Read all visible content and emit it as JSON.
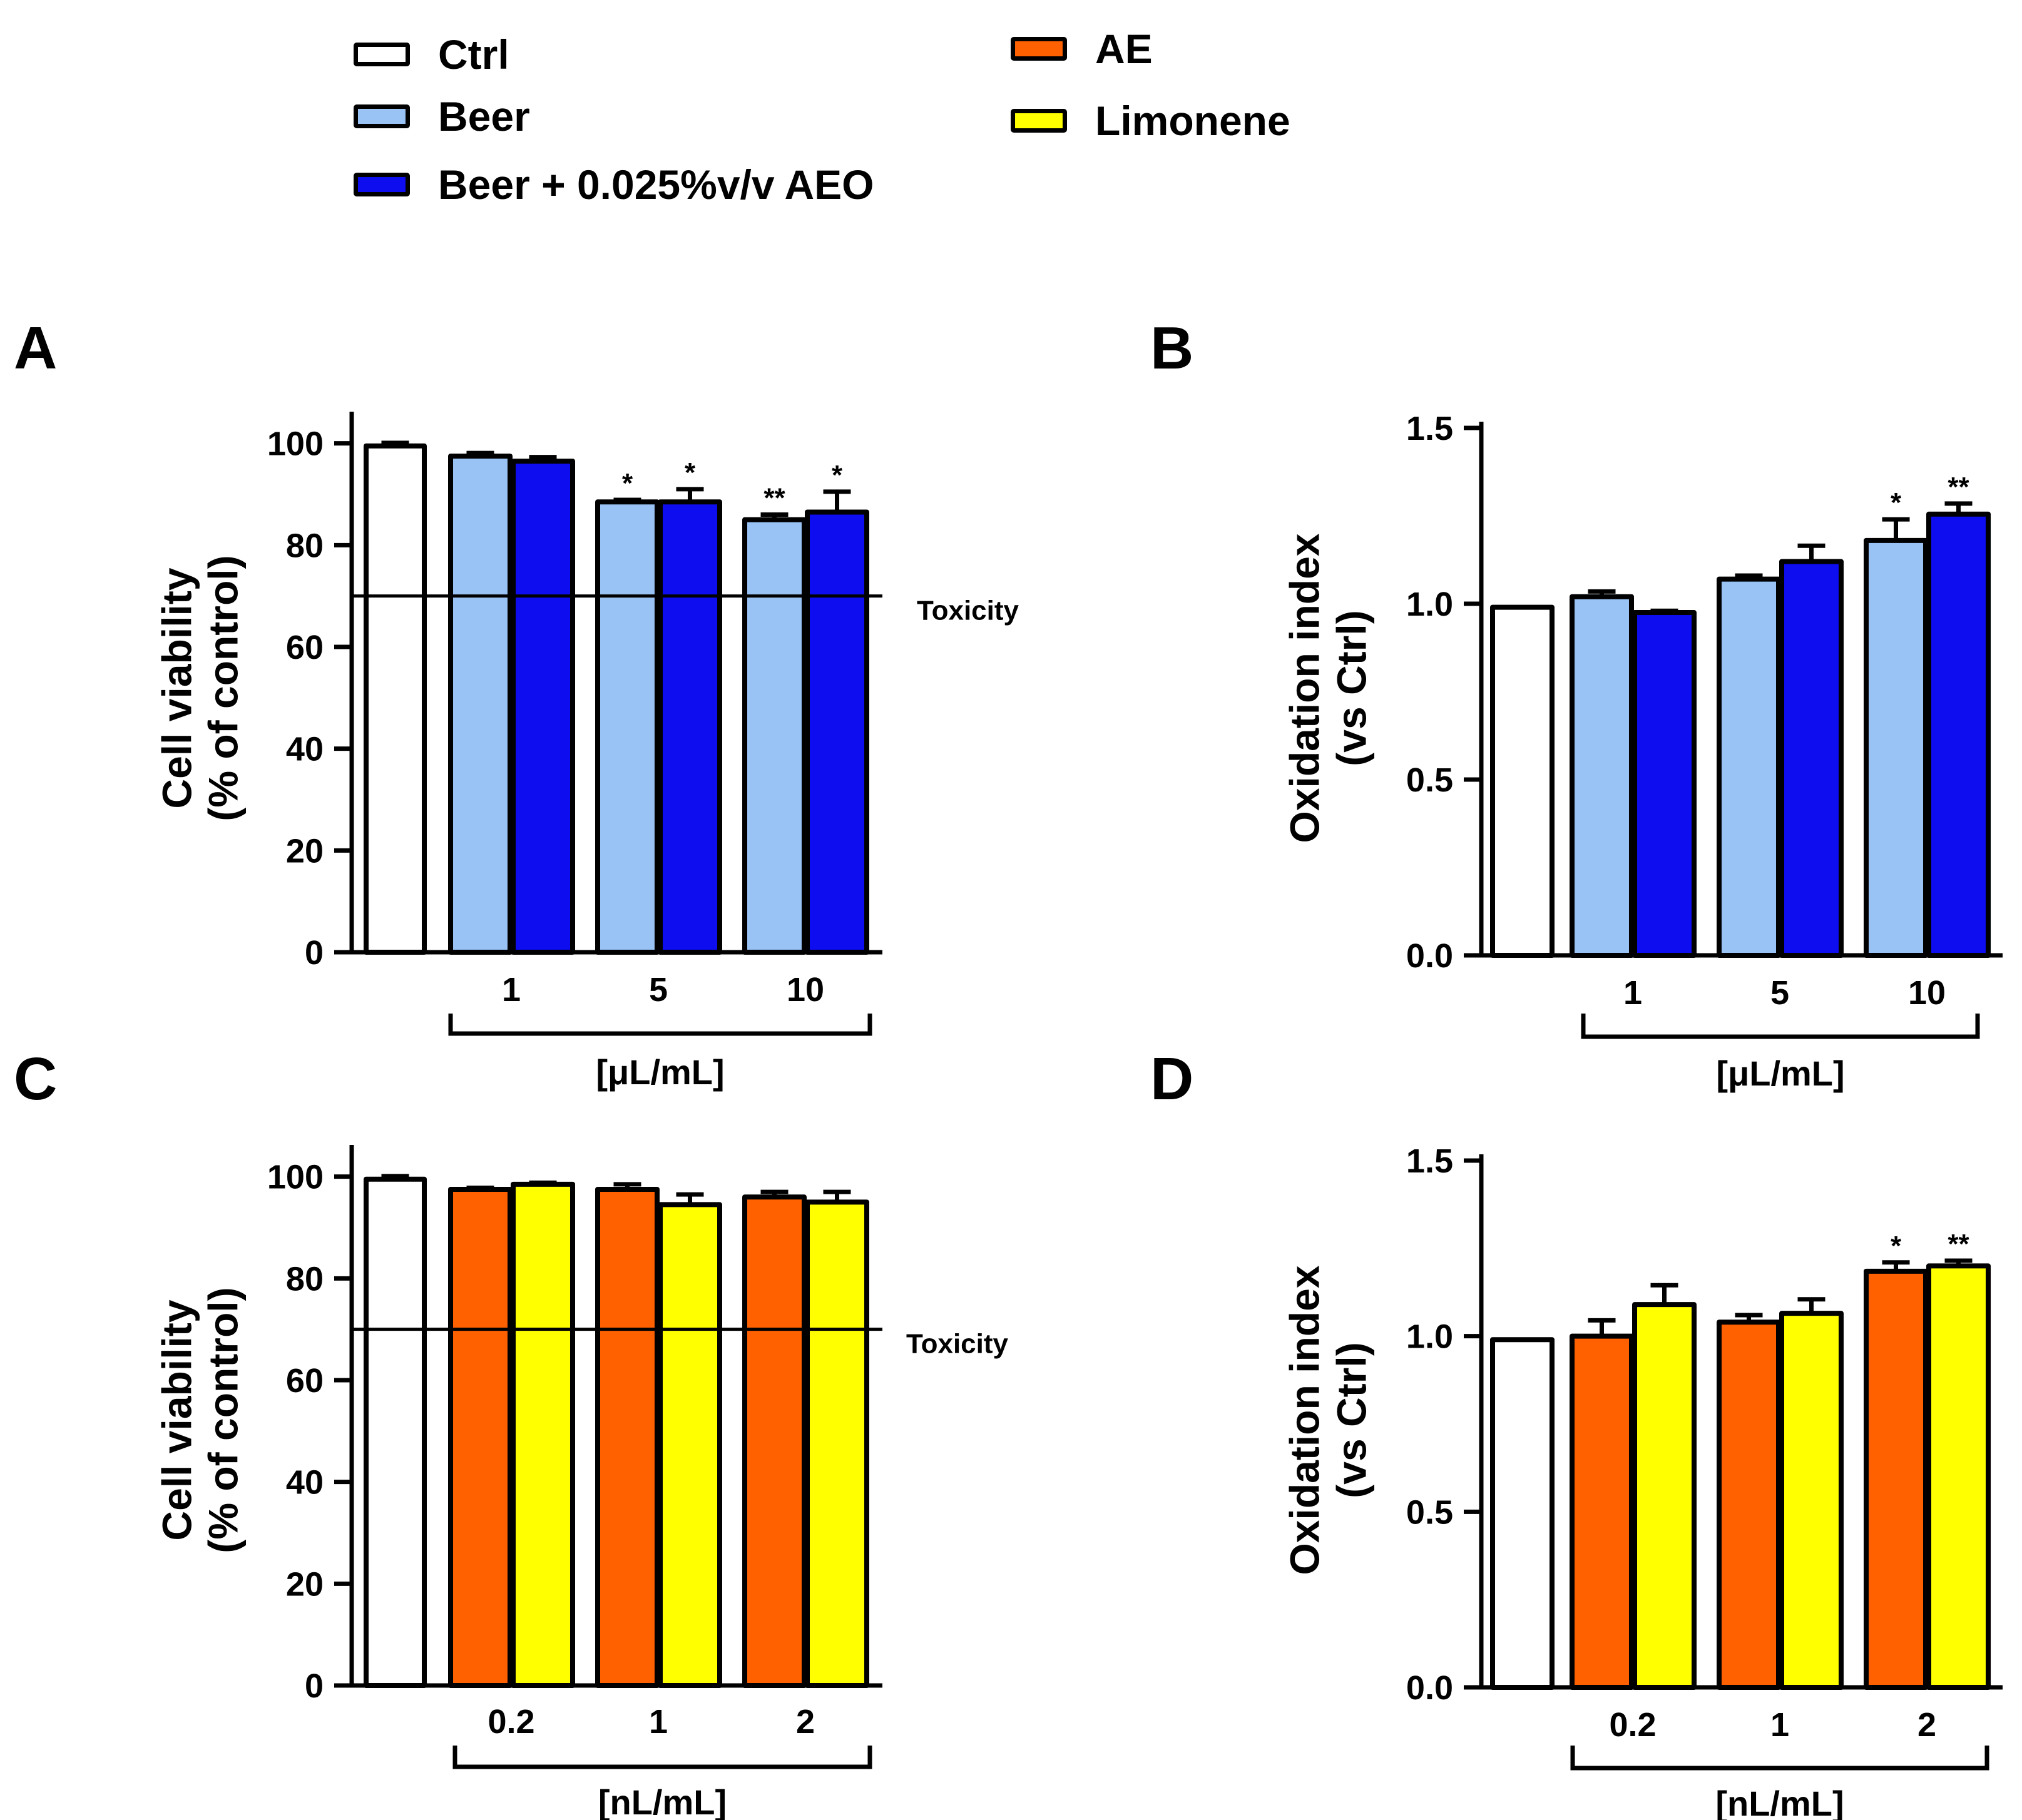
{
  "colors": {
    "ctrl": "#ffffff",
    "beer": "#99c2f5",
    "beer_aeo": "#0d0df0",
    "ae": "#ff6000",
    "limonene": "#ffff00"
  },
  "legend": [
    {
      "key": "ctrl",
      "label": "Ctrl",
      "color": "#ffffff"
    },
    {
      "key": "beer",
      "label": "Beer",
      "color": "#99c2f5"
    },
    {
      "key": "beer_aeo",
      "label": "Beer + 0.025%v/v AEO",
      "color": "#0d0df0"
    },
    {
      "key": "ae",
      "label": "AE",
      "color": "#ff6000"
    },
    {
      "key": "limonene",
      "label": "Limonene",
      "color": "#ffff00"
    }
  ],
  "toxicity_label": "Toxicity",
  "chart_data": [
    {
      "panel": "A",
      "type": "bar",
      "ylabel_line1": "Cell viability",
      "ylabel_line2": "(% of control)",
      "ylim": [
        0,
        105
      ],
      "yticks": [
        0,
        20,
        40,
        60,
        80,
        100
      ],
      "ytick_labels": [
        "0",
        "20",
        "40",
        "60",
        "80",
        "100"
      ],
      "xlabel": "[μL/mL]",
      "categories": [
        "1",
        "5",
        "10"
      ],
      "toxicity_line": 70,
      "ctrl": {
        "value": 99.5,
        "error": 0.6
      },
      "series": [
        {
          "name": "Beer",
          "color_key": "beer",
          "values": [
            97.5,
            88.5,
            85
          ],
          "errors": [
            0.6,
            0.4,
            1.0
          ],
          "sig": [
            "",
            "*",
            "**"
          ]
        },
        {
          "name": "Beer + 0.025%v/v AEO",
          "color_key": "beer_aeo",
          "values": [
            96.5,
            88.5,
            86.5
          ],
          "errors": [
            0.8,
            2.5,
            4.0
          ],
          "sig": [
            "",
            "*",
            "*"
          ]
        }
      ]
    },
    {
      "panel": "B",
      "type": "bar",
      "ylabel_line1": "Oxidation index",
      "ylabel_line2": "(vs Ctrl)",
      "ylim": [
        0,
        1.5
      ],
      "yticks": [
        0,
        0.5,
        1.0,
        1.5
      ],
      "ytick_labels": [
        "0.0",
        "0.5",
        "1.0",
        "1.5"
      ],
      "xlabel": "[μL/mL]",
      "categories": [
        "1",
        "5",
        "10"
      ],
      "ctrl": {
        "value": 0.99,
        "error": 0.0
      },
      "series": [
        {
          "name": "Beer",
          "color_key": "beer",
          "values": [
            1.02,
            1.07,
            1.18
          ],
          "errors": [
            0.015,
            0.01,
            0.06
          ],
          "sig": [
            "",
            "",
            "*"
          ]
        },
        {
          "name": "Beer + 0.025%v/v AEO",
          "color_key": "beer_aeo",
          "values": [
            0.975,
            1.12,
            1.255
          ],
          "errors": [
            0.005,
            0.045,
            0.03
          ],
          "sig": [
            "",
            "",
            "**"
          ]
        }
      ]
    },
    {
      "panel": "C",
      "type": "bar",
      "ylabel_line1": "Cell viability",
      "ylabel_line2": "(% of control)",
      "ylim": [
        0,
        105
      ],
      "yticks": [
        0,
        20,
        40,
        60,
        80,
        100
      ],
      "ytick_labels": [
        "0",
        "20",
        "40",
        "60",
        "80",
        "100"
      ],
      "xlabel": "[nL/mL]",
      "categories": [
        "0.2",
        "1",
        "2"
      ],
      "toxicity_line": 70,
      "ctrl": {
        "value": 99.5,
        "error": 0.6
      },
      "series": [
        {
          "name": "AE",
          "color_key": "ae",
          "values": [
            97.5,
            97.5,
            96
          ],
          "errors": [
            0.3,
            1.0,
            1.0
          ],
          "sig": [
            "",
            "",
            ""
          ]
        },
        {
          "name": "Limonene",
          "color_key": "limonene",
          "values": [
            98.5,
            94.5,
            95
          ],
          "errors": [
            0.3,
            2.0,
            2.0
          ],
          "sig": [
            "",
            "",
            ""
          ]
        }
      ]
    },
    {
      "panel": "D",
      "type": "bar",
      "ylabel_line1": "Oxidation index",
      "ylabel_line2": "(vs Ctrl)",
      "ylim": [
        0,
        1.5
      ],
      "yticks": [
        0,
        0.5,
        1.0,
        1.5
      ],
      "ytick_labels": [
        "0.0",
        "0.5",
        "1.0",
        "1.5"
      ],
      "xlabel": "[nL/mL]",
      "categories": [
        "0.2",
        "1",
        "2"
      ],
      "ctrl": {
        "value": 0.99,
        "error": 0.0
      },
      "series": [
        {
          "name": "AE",
          "color_key": "ae",
          "values": [
            1.0,
            1.04,
            1.185
          ],
          "errors": [
            0.045,
            0.02,
            0.025
          ],
          "sig": [
            "",
            "",
            "*"
          ]
        },
        {
          "name": "Limonene",
          "color_key": "limonene",
          "values": [
            1.09,
            1.065,
            1.2
          ],
          "errors": [
            0.055,
            0.04,
            0.015
          ],
          "sig": [
            "",
            "",
            "**"
          ]
        }
      ]
    }
  ]
}
